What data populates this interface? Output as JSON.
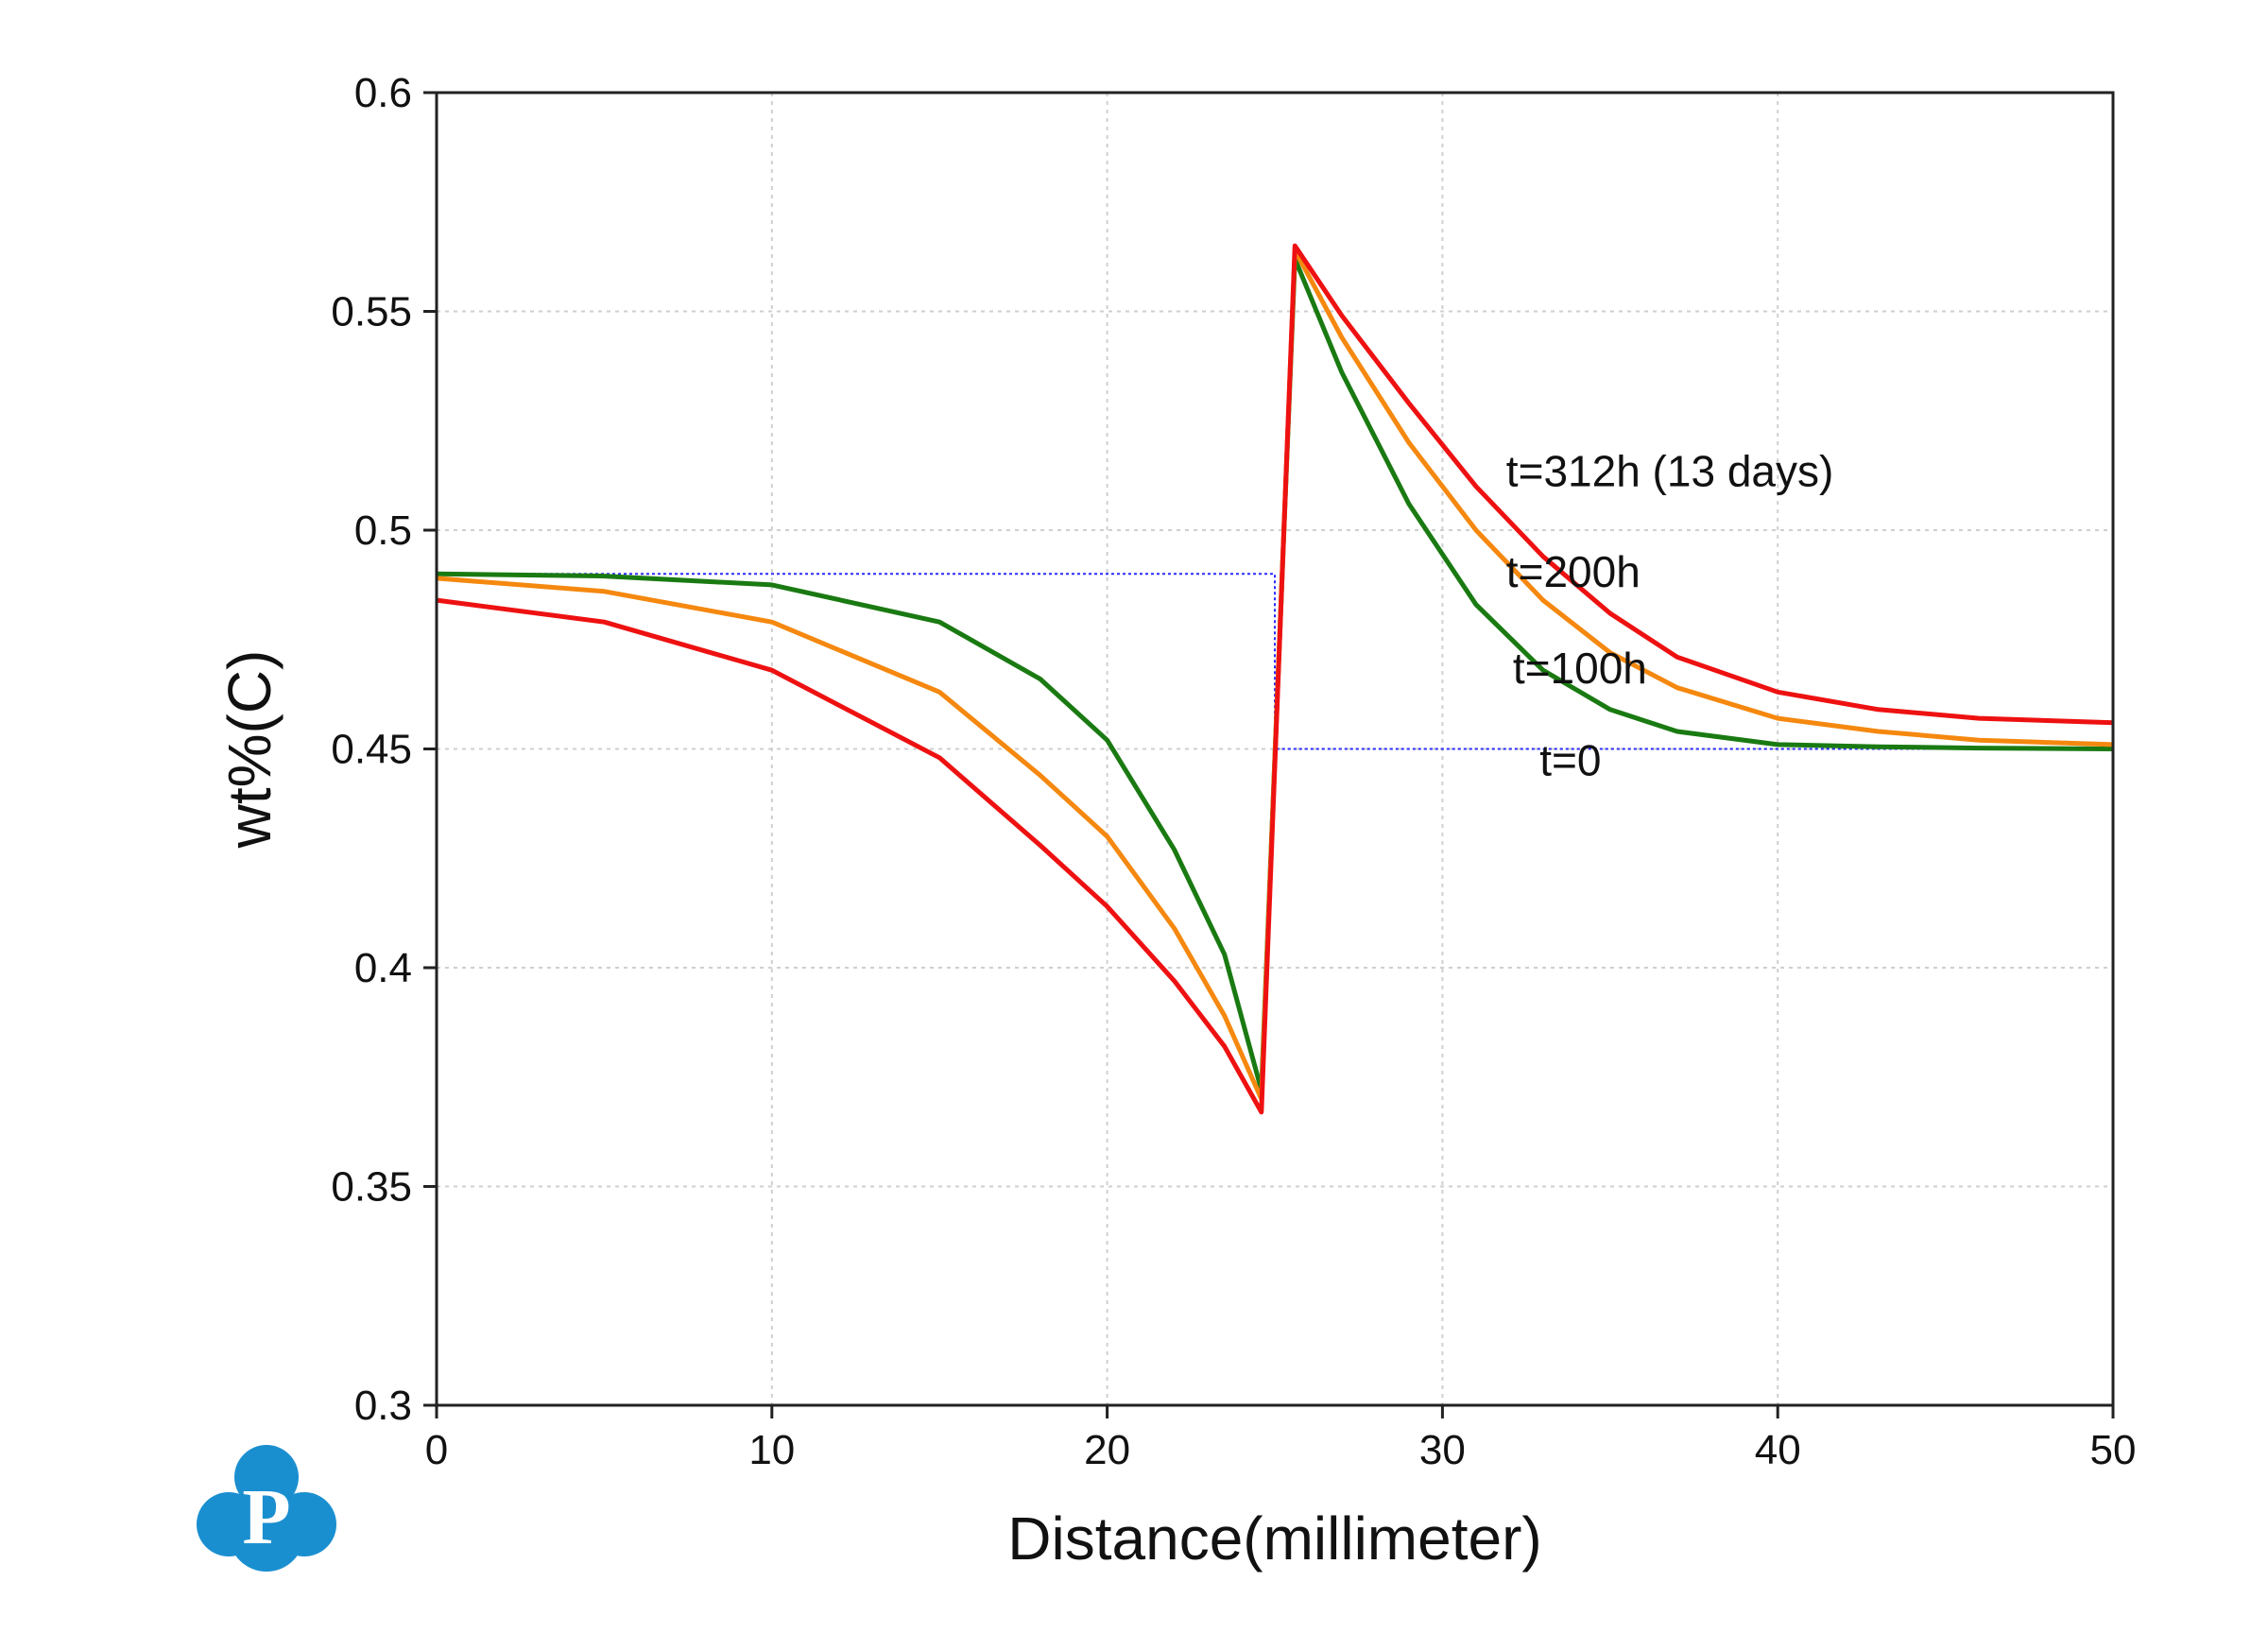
{
  "chart_data": {
    "type": "line",
    "title": "",
    "xlabel": "Distance(millimeter)",
    "ylabel": "wt%(C)",
    "xlim": [
      0,
      50
    ],
    "ylim": [
      0.3,
      0.6
    ],
    "xticks": [
      0,
      10,
      20,
      30,
      40,
      50
    ],
    "xtick_labels": [
      "0",
      "10",
      "20",
      "30",
      "40",
      "50"
    ],
    "yticks": [
      0.3,
      0.35,
      0.4,
      0.45,
      0.5,
      0.55,
      0.6
    ],
    "ytick_labels": [
      "0.3",
      "0.35",
      "0.4",
      "0.45",
      "0.5",
      "0.55",
      "0.6"
    ],
    "grid": true,
    "legend": "none",
    "series": [
      {
        "color": "#2a2aff",
        "dashed": true,
        "x": [
          0,
          25,
          25,
          50
        ],
        "y": [
          0.49,
          0.49,
          0.45,
          0.45
        ]
      },
      {
        "color": "#1a7a12",
        "x": [
          0,
          5,
          10,
          15,
          18,
          20,
          22,
          23.5,
          24.6,
          25.6,
          27,
          29,
          31,
          33,
          35,
          37,
          40,
          43,
          46,
          50
        ],
        "y": [
          0.49,
          0.4895,
          0.4875,
          0.479,
          0.466,
          0.452,
          0.427,
          0.403,
          0.372,
          0.562,
          0.536,
          0.506,
          0.483,
          0.468,
          0.459,
          0.454,
          0.451,
          0.4505,
          0.4502,
          0.45
        ]
      },
      {
        "color": "#f5880f",
        "x": [
          0,
          5,
          10,
          15,
          18,
          20,
          22,
          23.5,
          24.6,
          25.6,
          27,
          29,
          31,
          33,
          35,
          37,
          40,
          43,
          46,
          50
        ],
        "y": [
          0.489,
          0.486,
          0.479,
          0.463,
          0.444,
          0.43,
          0.409,
          0.389,
          0.37,
          0.564,
          0.544,
          0.52,
          0.5,
          0.484,
          0.472,
          0.464,
          0.457,
          0.454,
          0.452,
          0.451
        ]
      },
      {
        "color": "#ee1111",
        "x": [
          0,
          5,
          10,
          15,
          18,
          20,
          22,
          23.5,
          24.6,
          25.6,
          27,
          29,
          31,
          33,
          35,
          37,
          40,
          43,
          46,
          50
        ],
        "y": [
          0.484,
          0.479,
          0.468,
          0.448,
          0.428,
          0.414,
          0.397,
          0.382,
          0.367,
          0.565,
          0.549,
          0.529,
          0.51,
          0.494,
          0.481,
          0.471,
          0.463,
          0.459,
          0.457,
          0.456
        ]
      }
    ],
    "annotations": [
      {
        "text": "t=312h (13 days)",
        "x": 31.9,
        "y": 0.51
      },
      {
        "text": "t=200h",
        "x": 31.9,
        "y": 0.487
      },
      {
        "text": "t=100h",
        "x": 32.1,
        "y": 0.465
      },
      {
        "text": "t=0",
        "x": 32.9,
        "y": 0.444
      }
    ]
  },
  "logo": {
    "letter": "P",
    "color": "#1a8fd0"
  }
}
